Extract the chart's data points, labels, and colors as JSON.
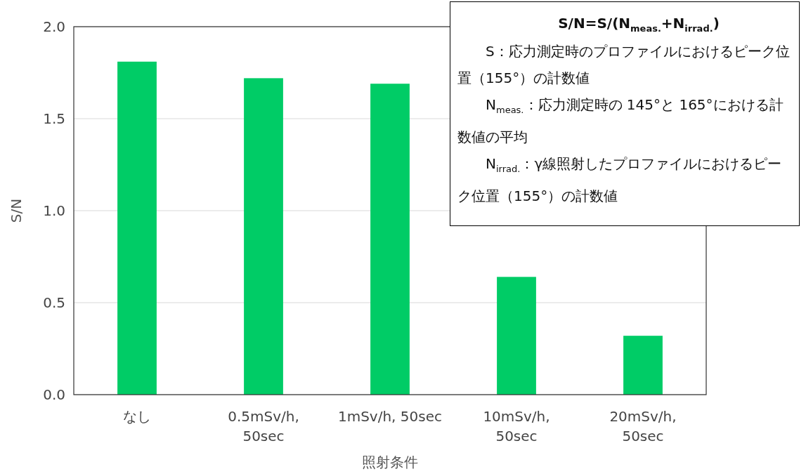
{
  "chart_data": {
    "type": "bar",
    "xlabel": "照射条件",
    "ylabel": "S/N",
    "categories": [
      "なし",
      "0.5mSv/h,\n50sec",
      "1mSv/h, 50sec",
      "10mSv/h,\n50sec",
      "20mSv/h,\n50sec"
    ],
    "values": [
      1.81,
      1.72,
      1.69,
      0.64,
      0.32
    ],
    "color": "#00cc66",
    "ylim": [
      0,
      2
    ],
    "yticks": [
      {
        "value": 0,
        "label": "0.0"
      },
      {
        "value": 0.5,
        "label": "0.5"
      },
      {
        "value": 1,
        "label": "1.0"
      },
      {
        "value": 1.5,
        "label": "1.5"
      },
      {
        "value": 2,
        "label": "2.0"
      }
    ],
    "grid": "y",
    "annotations": [
      "S/N=S/(N$_{meas.}$+N$_{irrad.}$)",
      "S：応力測定時のプロファイルにおけるピーク位置（155°）の計数値",
      "N$_{meas.}$：応力測定時の 145°と 165°における計数値の平均",
      "N$_{irrad.}$：γ線照射したプロファイルにおけるピーク位置（155°）の計数値"
    ]
  }
}
